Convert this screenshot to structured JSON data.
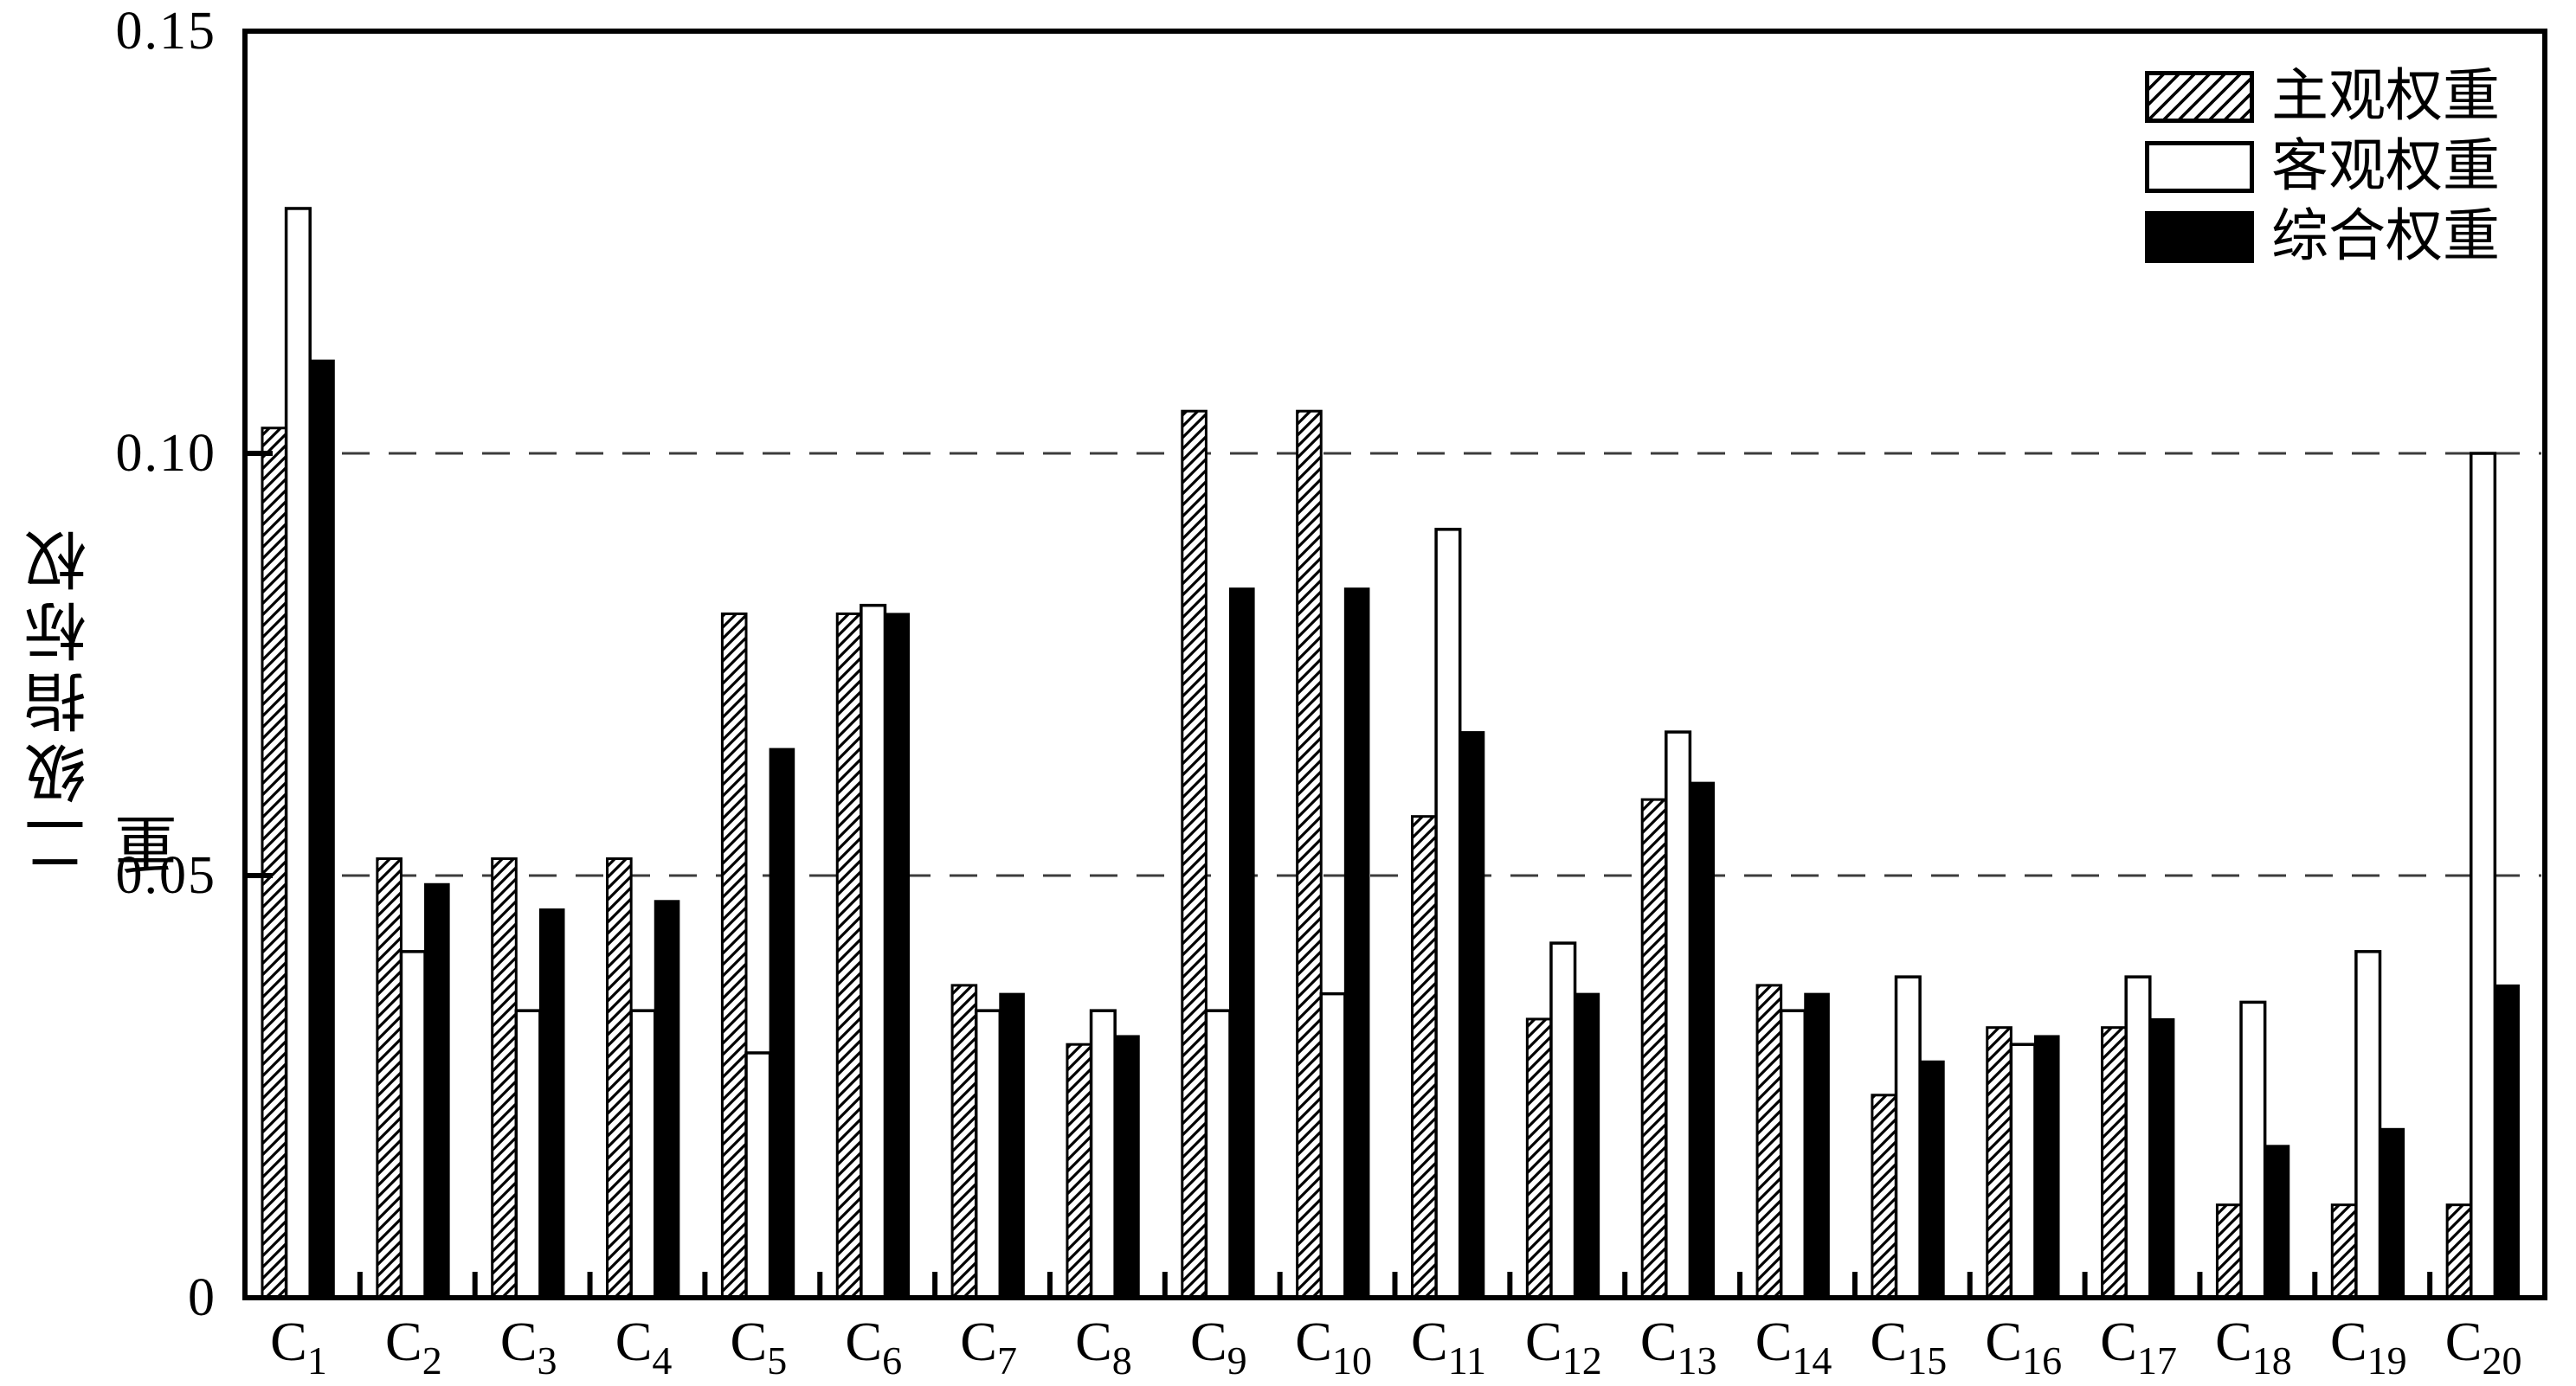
{
  "chart_data": {
    "type": "bar",
    "title": "",
    "xlabel": "",
    "ylabel": "二级指标权重",
    "ylim": [
      0,
      0.15
    ],
    "yticks": [
      0,
      0.05,
      0.1,
      0.15
    ],
    "ytick_labels": [
      "0",
      "0.05",
      "0.10",
      "0.15"
    ],
    "gridlines": {
      "style": "dashed",
      "at": [
        0.05,
        0.1
      ],
      "color": "#3c3c3c"
    },
    "legend_position": "top-right-inside",
    "category_prefix": "C",
    "category_subscripts": [
      "1",
      "2",
      "3",
      "4",
      "5",
      "6",
      "7",
      "8",
      "9",
      "10",
      "11",
      "12",
      "13",
      "14",
      "15",
      "16",
      "17",
      "18",
      "19",
      "20"
    ],
    "series": [
      {
        "name": "主观权重",
        "style": "hatched",
        "values": [
          0.103,
          0.052,
          0.052,
          0.052,
          0.081,
          0.081,
          0.037,
          0.03,
          0.105,
          0.105,
          0.057,
          0.033,
          0.059,
          0.037,
          0.024,
          0.032,
          0.032,
          0.011,
          0.011,
          0.011
        ]
      },
      {
        "name": "客观权重",
        "style": "white",
        "values": [
          0.129,
          0.041,
          0.034,
          0.034,
          0.029,
          0.082,
          0.034,
          0.034,
          0.034,
          0.036,
          0.091,
          0.042,
          0.067,
          0.034,
          0.038,
          0.03,
          0.038,
          0.035,
          0.041,
          0.1
        ]
      },
      {
        "name": "综合权重",
        "style": "black",
        "values": [
          0.111,
          0.049,
          0.046,
          0.047,
          0.065,
          0.081,
          0.036,
          0.031,
          0.084,
          0.084,
          0.067,
          0.036,
          0.061,
          0.036,
          0.028,
          0.031,
          0.033,
          0.018,
          0.02,
          0.037
        ]
      }
    ],
    "colors": {
      "ink": "#000000",
      "background": "#ffffff",
      "grid": "#3c3c3c"
    }
  }
}
